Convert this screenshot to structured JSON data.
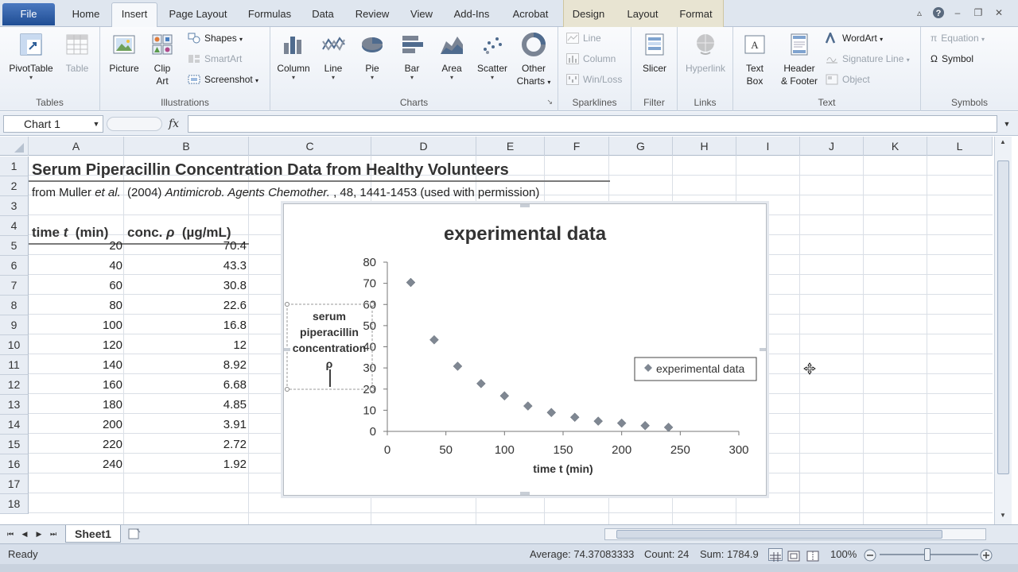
{
  "ribbon_tabs": [
    "File",
    "Home",
    "Insert",
    "Page Layout",
    "Formulas",
    "Data",
    "Review",
    "View",
    "Add-Ins",
    "Acrobat",
    "Design",
    "Layout",
    "Format"
  ],
  "ribbon": {
    "tables": {
      "label": "Tables",
      "pivot": "PivotTable",
      "table": "Table"
    },
    "illustrations": {
      "label": "Illustrations",
      "picture": "Picture",
      "clip_art_1": "Clip",
      "clip_art_2": "Art",
      "shapes": "Shapes",
      "smartart": "SmartArt",
      "screenshot": "Screenshot"
    },
    "charts": {
      "label": "Charts",
      "column": "Column",
      "line": "Line",
      "pie": "Pie",
      "bar": "Bar",
      "area": "Area",
      "scatter": "Scatter",
      "other_1": "Other",
      "other_2": "Charts"
    },
    "sparklines": {
      "label": "Sparklines",
      "line": "Line",
      "column": "Column",
      "winloss": "Win/Loss"
    },
    "filter": {
      "label": "Filter",
      "slicer": "Slicer"
    },
    "links": {
      "label": "Links",
      "hyperlink": "Hyperlink"
    },
    "text": {
      "label": "Text",
      "textbox_1": "Text",
      "textbox_2": "Box",
      "header_1": "Header",
      "header_2": "& Footer",
      "wordart": "WordArt",
      "signature": "Signature Line",
      "object": "Object"
    },
    "symbols": {
      "label": "Symbols",
      "equation": "Equation",
      "symbol": "Symbol"
    }
  },
  "formula_bar": {
    "name_box": "Chart 1",
    "fx": "fx",
    "formula": ""
  },
  "columns": [
    "A",
    "B",
    "C",
    "D",
    "E",
    "F",
    "G",
    "H",
    "I",
    "J",
    "K",
    "L"
  ],
  "rows": [
    "1",
    "2",
    "3",
    "4",
    "5",
    "6",
    "7",
    "8",
    "9",
    "10",
    "11",
    "12",
    "13",
    "14",
    "15",
    "16",
    "17",
    "18"
  ],
  "sheet": {
    "title": "Serum Piperacillin Concentration Data from Healthy Volunteers",
    "source": {
      "prefix": "from Muller ",
      "et_al": "et al.",
      "year": "  (2004) ",
      "journal": "Antimicrob. Agents Chemother.",
      "rest": " , 48, 1441-1453 (used with permission)"
    },
    "header_time": {
      "a": "time ",
      "t": "t",
      "b": "  (min)"
    },
    "header_conc": {
      "a": "conc. ",
      "rho": "ρ",
      "b": "  (µg/mL)"
    },
    "data": [
      [
        "20",
        "70.4"
      ],
      [
        "40",
        "43.3"
      ],
      [
        "60",
        "30.8"
      ],
      [
        "80",
        "22.6"
      ],
      [
        "100",
        "16.8"
      ],
      [
        "120",
        "12"
      ],
      [
        "140",
        "8.92"
      ],
      [
        "160",
        "6.68"
      ],
      [
        "180",
        "4.85"
      ],
      [
        "200",
        "3.91"
      ],
      [
        "220",
        "2.72"
      ],
      [
        "240",
        "1.92"
      ]
    ]
  },
  "chart_data": {
    "type": "scatter",
    "title": "experimental data",
    "xlabel": "time t (min)",
    "ylabel": "serum piperacillin concentration ρ",
    "legend_label": "experimental data",
    "legend_position": "right",
    "xlim": [
      0,
      300
    ],
    "ylim": [
      0,
      80
    ],
    "xticks": [
      0,
      50,
      100,
      150,
      200,
      250,
      300
    ],
    "yticks": [
      0,
      10,
      20,
      30,
      40,
      50,
      60,
      70,
      80
    ],
    "marker_color": "#7f8792",
    "series": [
      {
        "name": "experimental data",
        "x": [
          20,
          40,
          60,
          80,
          100,
          120,
          140,
          160,
          180,
          200,
          220,
          240
        ],
        "y": [
          70.4,
          43.3,
          30.8,
          22.6,
          16.8,
          12,
          8.92,
          6.68,
          4.85,
          3.91,
          2.72,
          1.92
        ]
      }
    ]
  },
  "sheet_tab": "Sheet1",
  "status": {
    "ready": "Ready",
    "average": "Average: 74.37083333",
    "count": "Count: 24",
    "sum": "Sum: 1784.9",
    "zoom": "100%"
  },
  "colors": {
    "file_tab": "#2b579a",
    "ribbon_bg": "#e9eef5",
    "context_tabs": "#e8e4d2"
  }
}
